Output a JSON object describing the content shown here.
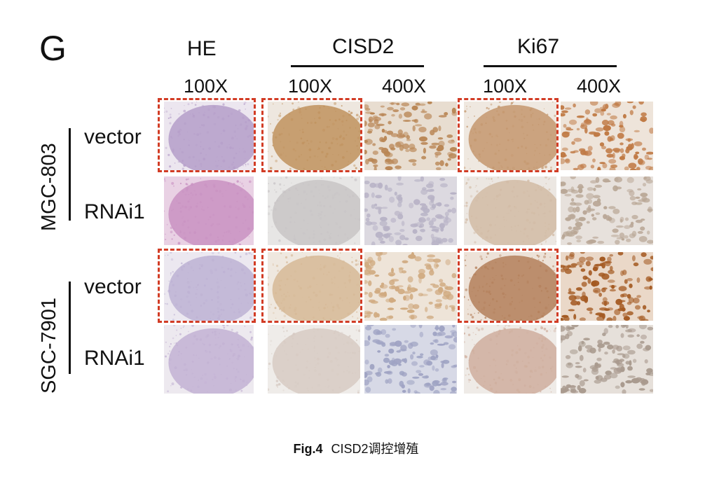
{
  "panel_letter": "G",
  "columns": {
    "he": "HE",
    "cisd2": "CISD2",
    "ki67": "Ki67"
  },
  "magnifications": [
    "100X",
    "100X",
    "400X",
    "100X",
    "400X"
  ],
  "cell_lines": [
    {
      "name": "MGC-803",
      "rows": [
        "vector",
        "RNAi1"
      ]
    },
    {
      "name": "SGC-7901",
      "rows": [
        "vector",
        "RNAi1"
      ]
    }
  ],
  "images": [
    [
      {
        "stain": "he",
        "fill": "#b59ec9",
        "bg": "#ece6ef",
        "highlight": true,
        "type": "lowmag"
      },
      {
        "stain": "cisd2",
        "fill": "#c0925e",
        "bg": "#eee7df",
        "highlight": true,
        "type": "lowmag"
      },
      {
        "stain": "cisd2",
        "fill": "#b98655",
        "bg": "#e8ddd0",
        "highlight": false,
        "type": "highmag"
      },
      {
        "stain": "ki67",
        "fill": "#c4976d",
        "bg": "#efe8e0",
        "highlight": true,
        "type": "lowmag"
      },
      {
        "stain": "ki67",
        "fill": "#c07a45",
        "bg": "#eee4da",
        "highlight": false,
        "type": "highmag"
      }
    ],
    [
      {
        "stain": "he",
        "fill": "#c992c2",
        "bg": "#e9d1e4",
        "highlight": false,
        "type": "lowmag"
      },
      {
        "stain": "cisd2",
        "fill": "#c8c4c6",
        "bg": "#e7e6e5",
        "highlight": false,
        "type": "lowmag"
      },
      {
        "stain": "cisd2",
        "fill": "#b8b3c6",
        "bg": "#dcd9e0",
        "highlight": false,
        "type": "highmag"
      },
      {
        "stain": "ki67",
        "fill": "#d2bba5",
        "bg": "#ece7e2",
        "highlight": false,
        "type": "lowmag"
      },
      {
        "stain": "ki67",
        "fill": "#b9a796",
        "bg": "#e7e1dc",
        "highlight": false,
        "type": "highmag"
      }
    ],
    [
      {
        "stain": "he",
        "fill": "#bdb1d3",
        "bg": "#ece8f0",
        "highlight": true,
        "type": "lowmag"
      },
      {
        "stain": "cisd2",
        "fill": "#d6b896",
        "bg": "#efe8df",
        "highlight": true,
        "type": "lowmag"
      },
      {
        "stain": "cisd2",
        "fill": "#d0aa80",
        "bg": "#eee4d8",
        "highlight": false,
        "type": "highmag"
      },
      {
        "stain": "ki67",
        "fill": "#b37f5a",
        "bg": "#ede2d8",
        "highlight": true,
        "type": "lowmag"
      },
      {
        "stain": "ki67",
        "fill": "#a45a22",
        "bg": "#ead8c8",
        "highlight": false,
        "type": "highmag"
      }
    ],
    [
      {
        "stain": "he",
        "fill": "#c2b1d3",
        "bg": "#ede9ef",
        "highlight": false,
        "type": "lowmag"
      },
      {
        "stain": "cisd2",
        "fill": "#d7cbc3",
        "bg": "#efece9",
        "highlight": false,
        "type": "lowmag"
      },
      {
        "stain": "cisd2",
        "fill": "#9fa3c3",
        "bg": "#d7d9e6",
        "highlight": false,
        "type": "highmag"
      },
      {
        "stain": "ki67",
        "fill": "#cfae9d",
        "bg": "#efebe7",
        "highlight": false,
        "type": "lowmag"
      },
      {
        "stain": "ki67",
        "fill": "#a99a8e",
        "bg": "#e6e0da",
        "highlight": false,
        "type": "highmag"
      }
    ]
  ],
  "colors": {
    "highlight_border": "#d23c25",
    "text": "#111111"
  },
  "caption": {
    "fig_label": "Fig.4",
    "text": "CISD2调控增殖"
  }
}
